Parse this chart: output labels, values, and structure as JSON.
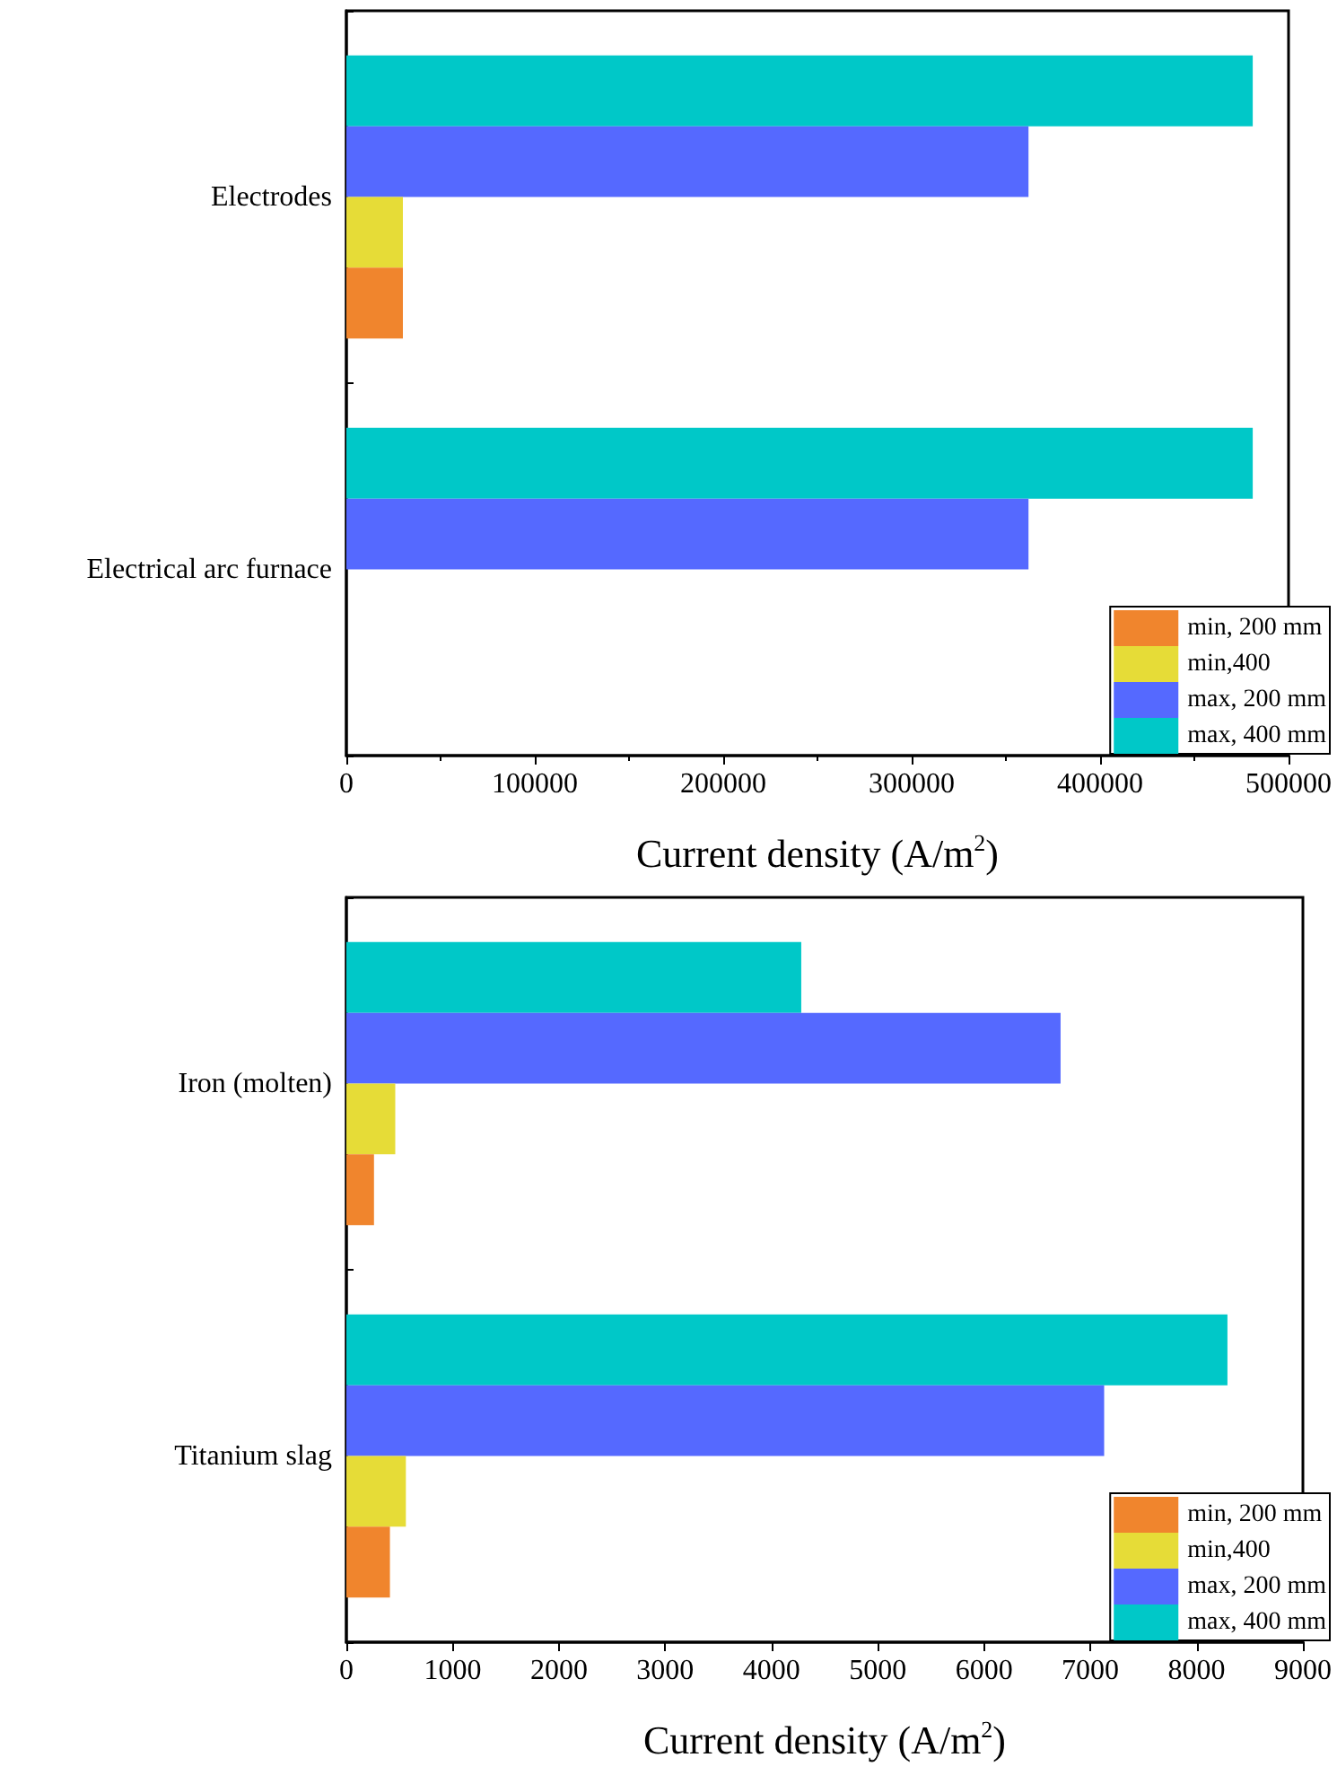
{
  "chart_data": [
    {
      "type": "bar",
      "orientation": "horizontal",
      "categories": [
        "Electrodes",
        "Electrical arc furnace"
      ],
      "xlabel": "Current density (A/m$^{2}$)",
      "xlim": [
        0,
        500000
      ],
      "xticks": [
        0,
        100000,
        200000,
        300000,
        400000,
        500000
      ],
      "grid": false,
      "legend": "bottom right",
      "series": [
        {
          "name": "min, 200 mm",
          "color": "#f0852d",
          "values": [
            30000,
            null
          ]
        },
        {
          "name": "min,400",
          "color": "#e6dc37",
          "values": [
            30000,
            null
          ]
        },
        {
          "name": "max, 200 mm",
          "color": "#5569ff",
          "values": [
            362000,
            362000
          ]
        },
        {
          "name": "max, 400 mm",
          "color": "#00c8c8",
          "values": [
            481000,
            481000
          ]
        }
      ]
    },
    {
      "type": "bar",
      "orientation": "horizontal",
      "categories": [
        "Iron (molten)",
        "Titanium slag"
      ],
      "xlabel": "Current density (A/m$^{2}$)",
      "xlim": [
        0,
        9000
      ],
      "xticks": [
        0,
        1000,
        2000,
        3000,
        4000,
        5000,
        6000,
        7000,
        8000,
        9000
      ],
      "grid": false,
      "legend": "bottom right",
      "series": [
        {
          "name": "min, 200 mm",
          "color": "#f0852d",
          "values": [
            260,
            410
          ]
        },
        {
          "name": "min,400",
          "color": "#e6dc37",
          "values": [
            460,
            560
          ]
        },
        {
          "name": "max, 200 mm",
          "color": "#5569ff",
          "values": [
            6720,
            7130
          ]
        },
        {
          "name": "max, 400 mm",
          "color": "#00c8c8",
          "values": [
            4280,
            8290
          ]
        }
      ]
    }
  ]
}
